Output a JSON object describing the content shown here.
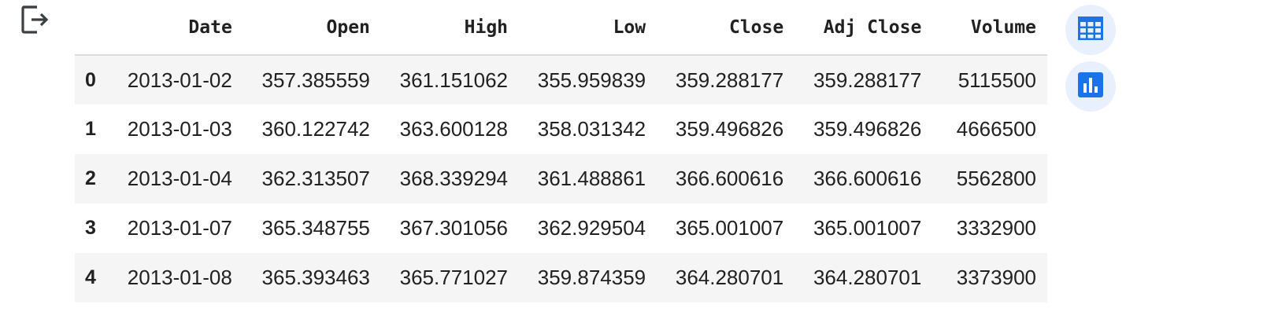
{
  "output": {
    "icon": "output-redirect-icon"
  },
  "dataframe": {
    "columns": [
      "Date",
      "Open",
      "High",
      "Low",
      "Close",
      "Adj Close",
      "Volume"
    ],
    "rows": [
      {
        "index": "0",
        "Date": "2013-01-02",
        "Open": "357.385559",
        "High": "361.151062",
        "Low": "355.959839",
        "Close": "359.288177",
        "Adj Close": "359.288177",
        "Volume": "5115500"
      },
      {
        "index": "1",
        "Date": "2013-01-03",
        "Open": "360.122742",
        "High": "363.600128",
        "Low": "358.031342",
        "Close": "359.496826",
        "Adj Close": "359.496826",
        "Volume": "4666500"
      },
      {
        "index": "2",
        "Date": "2013-01-04",
        "Open": "362.313507",
        "High": "368.339294",
        "Low": "361.488861",
        "Close": "366.600616",
        "Adj Close": "366.600616",
        "Volume": "5562800"
      },
      {
        "index": "3",
        "Date": "2013-01-07",
        "Open": "365.348755",
        "High": "367.301056",
        "Low": "362.929504",
        "Close": "365.001007",
        "Adj Close": "365.001007",
        "Volume": "3332900"
      },
      {
        "index": "4",
        "Date": "2013-01-08",
        "Open": "365.393463",
        "High": "365.771027",
        "Low": "359.874359",
        "Close": "364.280701",
        "Adj Close": "364.280701",
        "Volume": "3373900"
      }
    ]
  },
  "actions": {
    "table_button_icon": "table-icon",
    "chart_button_icon": "bar-chart-icon"
  },
  "colors": {
    "accent": "#1a73e8",
    "button_bg": "#e8f0fe",
    "row_stripe": "#f5f5f5",
    "icon_dark": "#3c4043"
  }
}
